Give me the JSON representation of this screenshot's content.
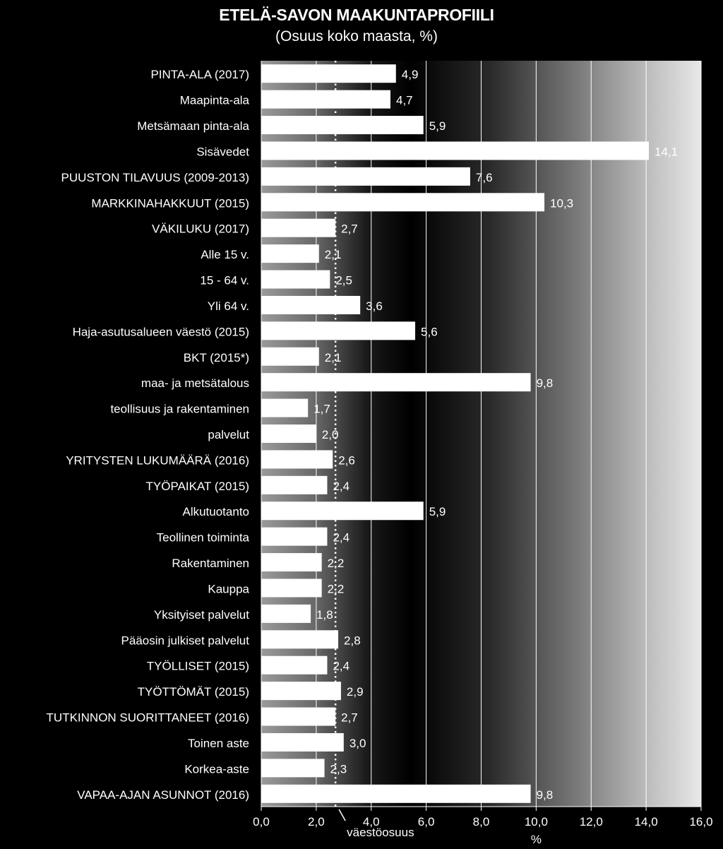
{
  "chart_data": {
    "type": "bar",
    "orientation": "horizontal",
    "title": "ETELÄ-SAVON MAAKUNTAPROFIILI",
    "subtitle": "(Osuus koko maasta, %)",
    "xlabel": "%",
    "xlim": [
      0,
      16
    ],
    "xticks": [
      "0,0",
      "2,0",
      "4,0",
      "6,0",
      "8,0",
      "10,0",
      "12,0",
      "14,0",
      "16,0"
    ],
    "xtick_values": [
      0,
      2,
      4,
      6,
      8,
      10,
      12,
      14,
      16
    ],
    "reference_line": {
      "label": "väestöosuus",
      "value": 2.7
    },
    "categories": [
      "PINTA-ALA (2017)",
      "Maapinta-ala",
      "Metsämaan pinta-ala",
      "Sisävedet",
      "PUUSTON TILAVUUS (2009-2013)",
      "MARKKINAHAKKUUT (2015)",
      "VÄKILUKU (2017)",
      "Alle 15 v.",
      "15 - 64 v.",
      "Yli 64 v.",
      "Haja-asutusalueen väestö (2015)",
      "BKT (2015*)",
      "maa- ja metsätalous",
      "teollisuus ja rakentaminen",
      "palvelut",
      "YRITYSTEN LUKUMÄÄRÄ (2016)",
      "TYÖPAIKAT (2015)",
      "Alkutuotanto",
      "Teollinen toiminta",
      "Rakentaminen",
      "Kauppa",
      "Yksityiset palvelut",
      "Pääosin julkiset palvelut",
      "TYÖLLISET (2015)",
      "TYÖTTÖMÄT (2015)",
      "TUTKINNON SUORITTANEET (2016)",
      "Toinen aste",
      "Korkea-aste",
      "VAPAA-AJAN ASUNNOT (2016)"
    ],
    "values": [
      4.9,
      4.7,
      5.9,
      14.1,
      7.6,
      10.3,
      2.7,
      2.1,
      2.5,
      3.6,
      5.6,
      2.1,
      9.8,
      1.7,
      2.0,
      2.6,
      2.4,
      5.9,
      2.4,
      2.2,
      2.2,
      1.8,
      2.8,
      2.4,
      2.9,
      2.7,
      3.0,
      2.3,
      9.8
    ],
    "value_labels": [
      "4,9",
      "4,7",
      "5,9",
      "14,1",
      "7,6",
      "10,3",
      "2,7",
      "2,1",
      "2,5",
      "3,6",
      "5,6",
      "2,1",
      "9,8",
      "1,7",
      "2,0",
      "2,6",
      "2,4",
      "5,9",
      "2,4",
      "2,2",
      "2,2",
      "1,8",
      "2,8",
      "2,4",
      "2,9",
      "2,7",
      "3,0",
      "2,3",
      "9,8"
    ],
    "grid": true,
    "colors": {
      "bar": "#ffffff",
      "background": "#000000",
      "text": "#ffffff",
      "reference": "#ffffff"
    }
  }
}
